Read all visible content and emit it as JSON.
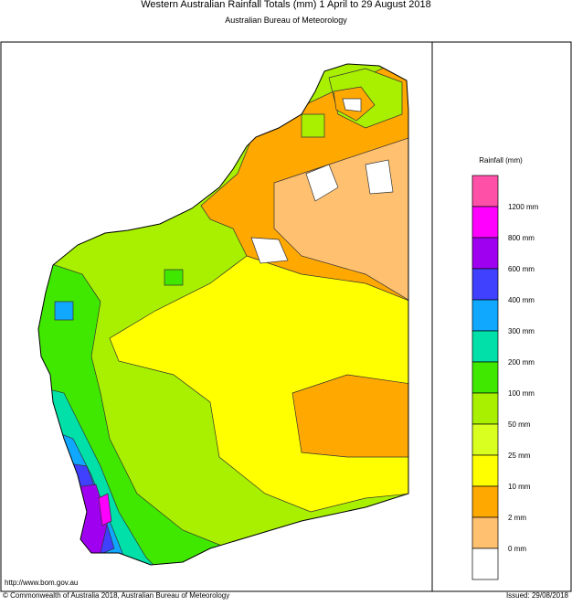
{
  "header": {
    "title": "Western Australian Rainfall Totals (mm) 1 April to 29 August 2018",
    "subtitle": "Australian Bureau of Meteorology"
  },
  "legend": {
    "title": "Rainfall (mm)",
    "colors": [
      "#ff50a8",
      "#ff00ff",
      "#a000f0",
      "#4040ff",
      "#10a8ff",
      "#00e0a8",
      "#40e800",
      "#a8f000",
      "#d8ff20",
      "#ffff00",
      "#ffa800",
      "#ffc070",
      "#ffffff"
    ],
    "labels": [
      "1200 mm",
      "800 mm",
      "600 mm",
      "400 mm",
      "300 mm",
      "200 mm",
      "100 mm",
      "50 mm",
      "25 mm",
      "10 mm",
      "2 mm",
      "0 mm"
    ]
  },
  "footer": {
    "url": "http://www.bom.gov.au",
    "copyright": "© Commonwealth of Australia 2018, Australian Bureau of Meteorology",
    "issued": "Issued: 29/08/2018"
  }
}
